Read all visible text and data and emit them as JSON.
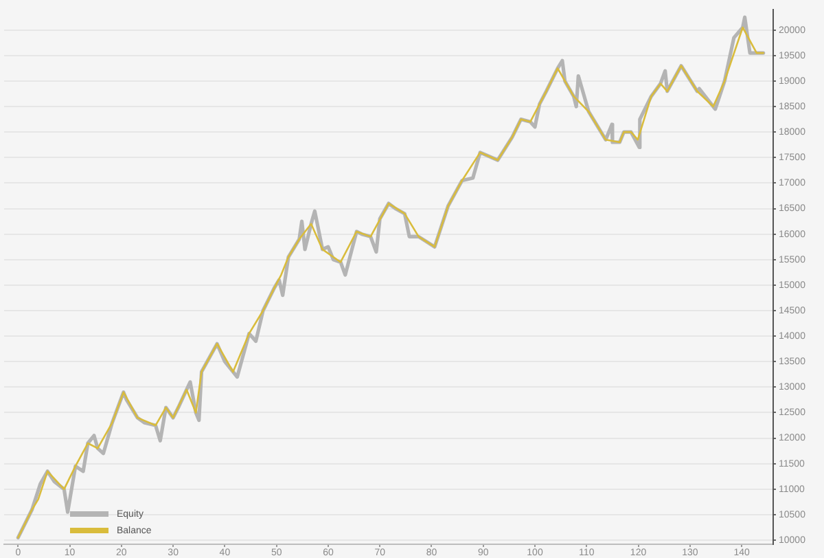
{
  "chart_data": {
    "type": "line",
    "series": [
      {
        "name": "Equity",
        "color": "#b4b4b4",
        "x": [
          0,
          2.7,
          4.3,
          5.7,
          7,
          8.9,
          9.6,
          11.1,
          12.6,
          13.5,
          14.7,
          15.4,
          16.5,
          18.2,
          20.4,
          21,
          23.1,
          24.5,
          26.6,
          27.5,
          28.6,
          30,
          31,
          32.6,
          33.3,
          34.4,
          35,
          35.5,
          38.5,
          40,
          41.6,
          42.4,
          44.7,
          46,
          47.4,
          49.6,
          50.5,
          51.2,
          52.3,
          54.4,
          54.9,
          55.5,
          56.7,
          57.4,
          58.9,
          60,
          61,
          62.4,
          63.3,
          65.5,
          66.5,
          68.2,
          69.3,
          70,
          71.7,
          73,
          74.8,
          75.7,
          77.5,
          80.6,
          83.2,
          85.9,
          88,
          89.4,
          92.8,
          95.6,
          97.3,
          99.1,
          100,
          100.9,
          102.2,
          104.4,
          105.3,
          105.8,
          107.5,
          108,
          108.4,
          110.4,
          113.7,
          114.9,
          115,
          116.4,
          117.2,
          118.6,
          120.2,
          120.3,
          122.5,
          124.3,
          125.2,
          125.6,
          128.3,
          131.4,
          131.8,
          134.5,
          134.9,
          136.7,
          138.5,
          140.2,
          140.6,
          141.6,
          142.9,
          144.2
        ],
        "values": [
          10050,
          10600,
          11100,
          11350,
          11150,
          11000,
          10550,
          11450,
          11350,
          11900,
          12050,
          11800,
          11700,
          12300,
          12900,
          12750,
          12400,
          12300,
          12250,
          11950,
          12600,
          12400,
          12600,
          12950,
          13100,
          12500,
          12350,
          13300,
          13850,
          13500,
          13300,
          13200,
          14050,
          13900,
          14500,
          14950,
          15100,
          14800,
          15550,
          15900,
          16250,
          15700,
          16200,
          16450,
          15700,
          15750,
          15500,
          15450,
          15200,
          16050,
          16000,
          15950,
          15650,
          16300,
          16600,
          16500,
          16400,
          15950,
          15950,
          15750,
          16550,
          17050,
          17100,
          17600,
          17450,
          17900,
          18250,
          18200,
          18100,
          18550,
          18800,
          19250,
          19400,
          19000,
          18700,
          18500,
          19100,
          18400,
          17850,
          18150,
          17800,
          17800,
          18000,
          18000,
          17700,
          18250,
          18700,
          18950,
          19200,
          18800,
          19300,
          18800,
          18850,
          18500,
          18450,
          19000,
          19850,
          20050,
          20250,
          19550,
          19550,
          19550
        ]
      },
      {
        "name": "Balance",
        "color": "#d9bc3c",
        "x": [
          0,
          2.7,
          3.9,
          5.7,
          8.9,
          11.1,
          13.5,
          15.4,
          18.2,
          20.4,
          23.1,
          26.6,
          28.6,
          30,
          32.6,
          34.4,
          35.5,
          38.5,
          41.6,
          44.7,
          47.4,
          49.6,
          50.9,
          52.3,
          54.4,
          56.7,
          58.9,
          62.4,
          65.5,
          68.2,
          71.7,
          74.8,
          77.5,
          80.6,
          83.2,
          85.9,
          89.4,
          92.8,
          95.6,
          97.3,
          99.1,
          100.9,
          102.2,
          104.4,
          105.8,
          107.5,
          110.4,
          113.7,
          116.4,
          117.2,
          118.6,
          119.9,
          122.5,
          124.3,
          125.6,
          128.3,
          131.4,
          134.5,
          136.7,
          140.2,
          142.9,
          144.2
        ],
        "values": [
          10050,
          10600,
          10800,
          11350,
          11000,
          11450,
          11900,
          11800,
          12300,
          12900,
          12400,
          12250,
          12600,
          12400,
          12950,
          12500,
          13300,
          13850,
          13300,
          14050,
          14500,
          14950,
          15200,
          15550,
          15900,
          16200,
          15700,
          15450,
          16050,
          15950,
          16600,
          16400,
          15950,
          15750,
          16550,
          17050,
          17600,
          17450,
          17900,
          18250,
          18200,
          18550,
          18800,
          19250,
          19000,
          18700,
          18400,
          17850,
          17800,
          18000,
          18000,
          17850,
          18700,
          18950,
          18800,
          19300,
          18800,
          18500,
          19000,
          20050,
          19550,
          19550
        ]
      }
    ],
    "xlim": [
      -2.7,
      146.1
    ],
    "xticks": [
      0,
      10,
      20,
      30,
      40,
      50,
      60,
      70,
      80,
      90,
      100,
      110,
      120,
      130,
      140
    ],
    "ylim": [
      9920,
      20400
    ],
    "yticks": [
      10000,
      10500,
      11000,
      11500,
      12000,
      12500,
      13000,
      13500,
      14000,
      14500,
      15000,
      15500,
      16000,
      16500,
      17000,
      17500,
      18000,
      18500,
      19000,
      19500,
      20000
    ],
    "grid": "y",
    "legend": "bottom left",
    "marker": "none"
  }
}
